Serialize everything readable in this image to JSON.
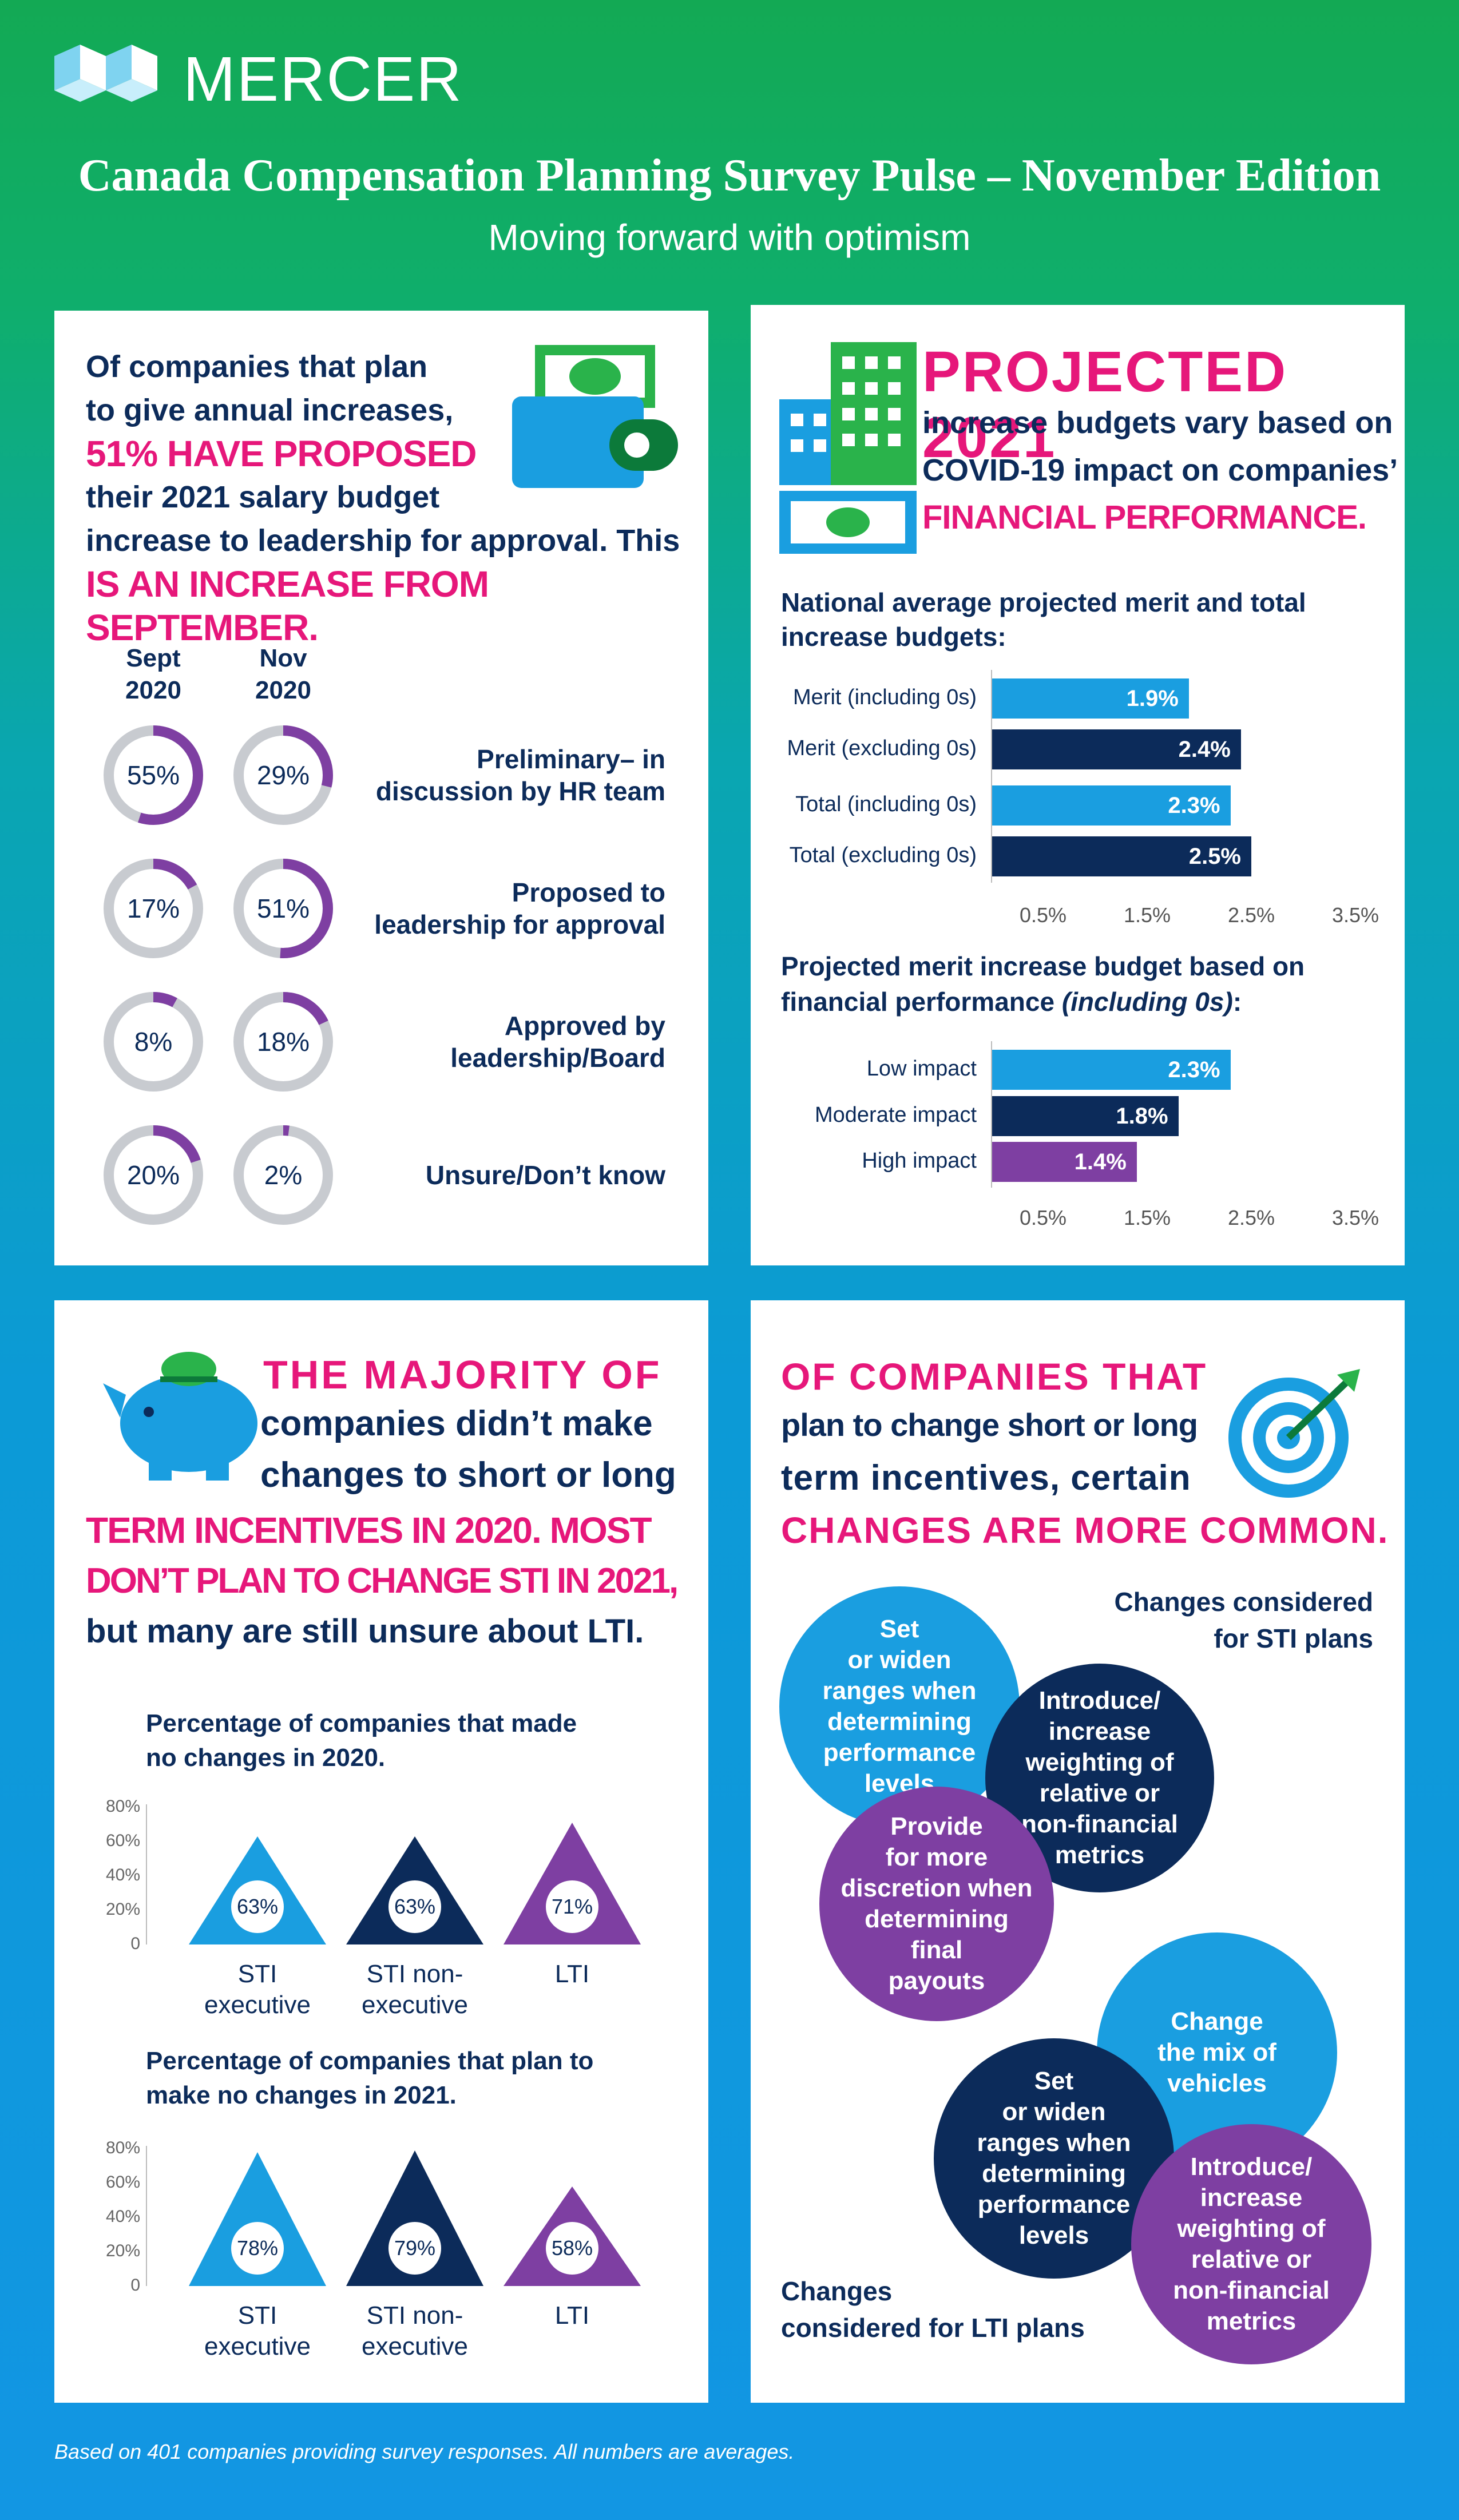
{
  "header": {
    "brand": "MERCER",
    "title": "Canada Compensation Planning Survey Pulse – November Edition",
    "subtitle": "Moving forward with optimism"
  },
  "panel1": {
    "line1": "Of companies that plan",
    "line2": "to give annual increases,",
    "line3": "51% HAVE PROPOSED",
    "line4": "their 2021 salary budget",
    "line5": "increase to leadership for approval. This",
    "line6": "IS AN INCREASE FROM SEPTEMBER.",
    "col1": "Sept\n2020",
    "col2": "Nov\n2020",
    "rows": [
      {
        "label": "Preliminary– in\ndiscussion by HR team",
        "sept": "55%",
        "nov": "29%",
        "sept_v": 55,
        "nov_v": 29
      },
      {
        "label": "Proposed to\nleadership for approval",
        "sept": "17%",
        "nov": "51%",
        "sept_v": 17,
        "nov_v": 51
      },
      {
        "label": "Approved by\nleadership/Board",
        "sept": "8%",
        "nov": "18%",
        "sept_v": 8,
        "nov_v": 18
      },
      {
        "label": "Unsure/Don’t know",
        "sept": "20%",
        "nov": "2%",
        "sept_v": 20,
        "nov_v": 2
      }
    ]
  },
  "panel2": {
    "heading": "PROJECTED 2021",
    "line2": "increase budgets vary based on",
    "line3": "COVID-19 impact on companies’",
    "line4": "FINANCIAL PERFORMANCE.",
    "chart1_title": "National average projected merit and total\nincrease budgets:",
    "chart1": [
      {
        "label": "Merit (including 0s)",
        "value": 1.9,
        "text": "1.9%",
        "color": "#1a9ee0"
      },
      {
        "label": "Merit (excluding 0s)",
        "value": 2.4,
        "text": "2.4%",
        "color": "#0c2b5a"
      },
      {
        "label": "Total (including 0s)",
        "value": 2.3,
        "text": "2.3%",
        "color": "#1a9ee0"
      },
      {
        "label": "Total (excluding 0s)",
        "value": 2.5,
        "text": "2.5%",
        "color": "#0c2b5a"
      }
    ],
    "ticks": [
      "0.5%",
      "1.5%",
      "2.5%",
      "3.5%"
    ],
    "chart2_title_a": "Projected merit increase budget based on",
    "chart2_title_b": "financial performance ",
    "chart2_title_c": "(including 0s)",
    "chart2_title_d": ":",
    "chart2": [
      {
        "label": "Low impact",
        "value": 2.3,
        "text": "2.3%",
        "color": "#1a9ee0"
      },
      {
        "label": "Moderate impact",
        "value": 1.8,
        "text": "1.8%",
        "color": "#0c2b5a"
      },
      {
        "label": "High impact",
        "value": 1.4,
        "text": "1.4%",
        "color": "#7e3fa2"
      }
    ]
  },
  "panel3": {
    "line1": "THE MAJORITY OF",
    "line2": "companies didn’t make",
    "line3": "changes to short or long",
    "line4": "TERM INCENTIVES IN 2020. MOST",
    "line5": "DON’T PLAN TO CHANGE STI IN 2021,",
    "line6": "but many are still unsure about LTI.",
    "chart1_title": "Percentage of companies that made\nno changes in 2020.",
    "chart2_title": "Percentage of companies that plan to\nmake no changes in 2021.",
    "yticks": [
      "80%",
      "60%",
      "40%",
      "20%",
      "0"
    ],
    "chart1": [
      {
        "label": "STI\nexecutive",
        "value": 63,
        "text": "63%",
        "color": "#1a9ee0"
      },
      {
        "label": "STI non-\nexecutive",
        "value": 63,
        "text": "63%",
        "color": "#0c2b5a"
      },
      {
        "label": "LTI",
        "value": 71,
        "text": "71%",
        "color": "#7e3fa2"
      }
    ],
    "chart2": [
      {
        "label": "STI\nexecutive",
        "value": 78,
        "text": "78%",
        "color": "#1a9ee0"
      },
      {
        "label": "STI non-\nexecutive",
        "value": 79,
        "text": "79%",
        "color": "#0c2b5a"
      },
      {
        "label": "LTI",
        "value": 58,
        "text": "58%",
        "color": "#7e3fa2"
      }
    ]
  },
  "panel4": {
    "line1": "OF COMPANIES THAT",
    "line2": "plan to change short or long",
    "line3": "term incentives, certain",
    "line4": "CHANGES ARE MORE COMMON.",
    "sti_title": "Changes considered\nfor STI plans",
    "lti_title": "Changes\nconsidered for LTI plans",
    "sti_items": [
      "Set\nor widen\nranges when\ndetermining\nperformance\nlevels",
      "Introduce/\nincrease\nweighting of\nrelative or\nnon-financial\nmetrics",
      "Provide\nfor more\ndiscretion when\ndetermining\nfinal\npayouts"
    ],
    "lti_items": [
      "Change\nthe mix of\nvehicles",
      "Set\nor widen\nranges when\ndetermining\nperformance\nlevels",
      "Introduce/\nincrease\nweighting of\nrelative or\nnon-financial\nmetrics"
    ]
  },
  "footnote": "Based on 401 companies providing survey responses. All numbers are averages.",
  "colors": {
    "pink": "#e6177a",
    "navy": "#0c2b5a",
    "blue": "#1a9ee0",
    "purple": "#7e3fa2",
    "green": "#2ab34b"
  }
}
